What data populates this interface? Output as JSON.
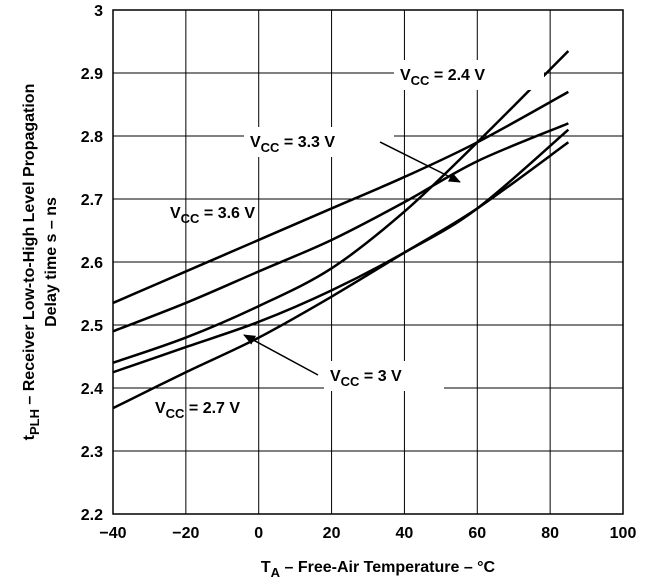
{
  "chart_data": {
    "type": "line",
    "xlabel": "T_A – Free-Air Temperature – °C",
    "xlabel_main": "T",
    "xlabel_sub": "A",
    "xlabel_rest": " – Free-Air Temperature – °C",
    "ylabel": "t_PLH – Receiver Low-to-High Level Propagation Delay time s – ns",
    "ylabel_line1_main": "t",
    "ylabel_line1_sub": "PLH",
    "ylabel_line1_rest": " – Receiver Low-to-High Level Propagation",
    "ylabel_line2": "Delay time s – ns",
    "xlim": [
      -40,
      100
    ],
    "ylim": [
      2.2,
      3.0
    ],
    "xticks": [
      -40,
      -20,
      0,
      20,
      40,
      60,
      80,
      100
    ],
    "xtick_labels": [
      "−40",
      "−20",
      "0",
      "20",
      "40",
      "60",
      "80",
      "100"
    ],
    "yticks": [
      2.2,
      2.3,
      2.4,
      2.5,
      2.6,
      2.7,
      2.8,
      2.9,
      3.0
    ],
    "ytick_labels": [
      "2.2",
      "2.3",
      "2.4",
      "2.5",
      "2.6",
      "2.7",
      "2.8",
      "2.9",
      "3"
    ],
    "grid": true,
    "series": [
      {
        "name": "VCC = 2.4 V",
        "label_main": "V",
        "label_sub": "CC",
        "label_rest": " = 2.4 V",
        "x": [
          -40,
          -20,
          0,
          20,
          40,
          60,
          85
        ],
        "y": [
          2.44,
          2.48,
          2.53,
          2.59,
          2.68,
          2.79,
          2.935
        ]
      },
      {
        "name": "VCC = 3.3 V",
        "label_main": "V",
        "label_sub": "CC",
        "label_rest": " = 3.3 V",
        "x": [
          -40,
          -20,
          0,
          20,
          40,
          60,
          85
        ],
        "y": [
          2.49,
          2.535,
          2.585,
          2.635,
          2.695,
          2.76,
          2.82
        ]
      },
      {
        "name": "VCC = 3.6 V",
        "label_main": "V",
        "label_sub": "CC",
        "label_rest": " = 3.6 V",
        "x": [
          -40,
          -20,
          0,
          20,
          40,
          60,
          85
        ],
        "y": [
          2.535,
          2.585,
          2.635,
          2.685,
          2.735,
          2.79,
          2.87
        ]
      },
      {
        "name": "VCC = 3 V",
        "label_main": "V",
        "label_sub": "CC",
        "label_rest": " = 3 V",
        "x": [
          -40,
          -20,
          0,
          20,
          40,
          60,
          85
        ],
        "y": [
          2.425,
          2.465,
          2.505,
          2.555,
          2.615,
          2.685,
          2.81
        ]
      },
      {
        "name": "VCC = 2.7 V",
        "label_main": "V",
        "label_sub": "CC",
        "label_rest": " = 2.7 V",
        "x": [
          -40,
          -20,
          0,
          20,
          40,
          60,
          85
        ],
        "y": [
          2.368,
          2.425,
          2.48,
          2.545,
          2.615,
          2.685,
          2.79
        ]
      }
    ]
  }
}
